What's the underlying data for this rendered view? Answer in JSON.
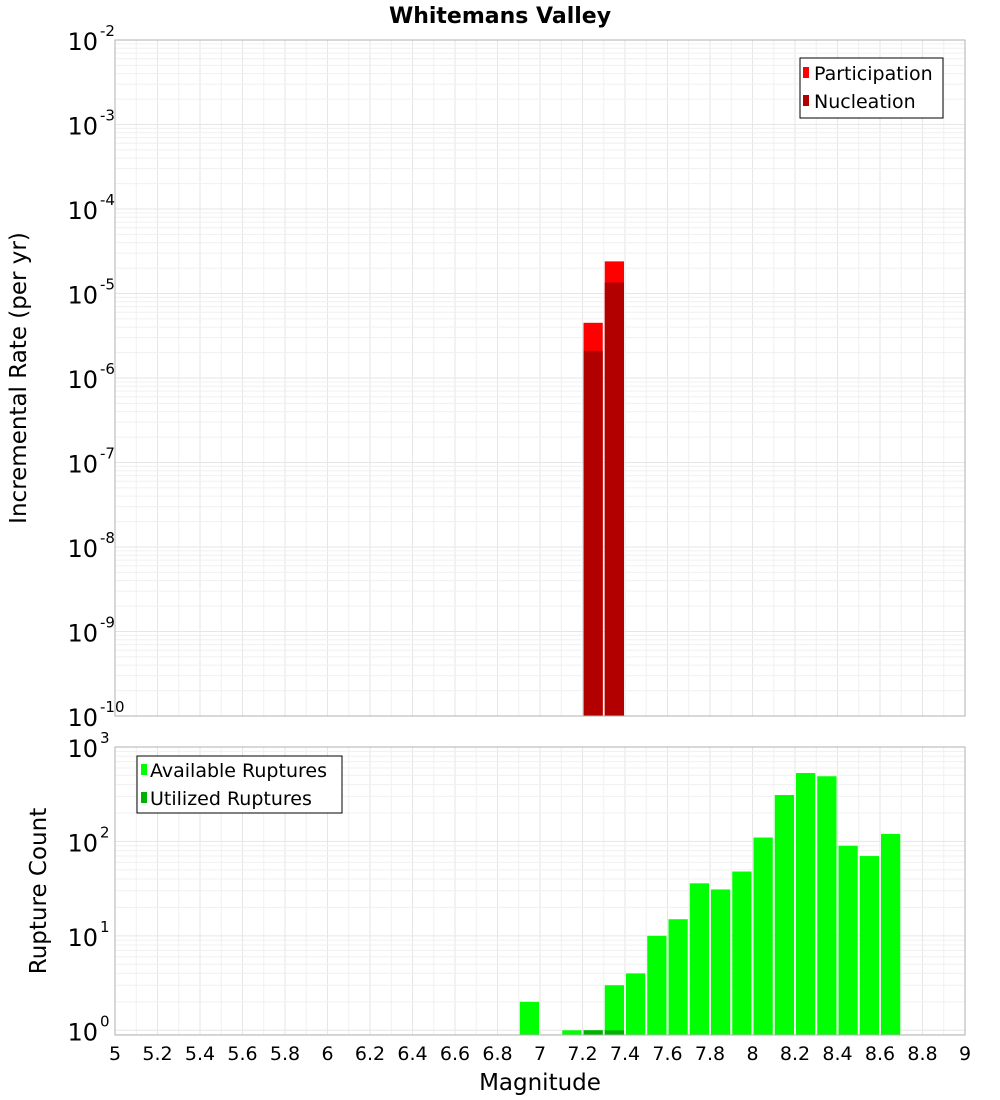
{
  "chart_data": [
    {
      "id": "rate",
      "type": "bar",
      "title": "Whitemans Valley",
      "xlabel": "",
      "ylabel": "Incremental Rate (per yr)",
      "xlim": [
        5,
        9
      ],
      "ylim_log10": [
        -10,
        -2
      ],
      "yscale": "log",
      "bin_width": 0.1,
      "legend_position": "top-right",
      "series": [
        {
          "name": "Participation",
          "color": "#ff0000",
          "x": [
            7.25,
            7.35
          ],
          "values": [
            4.5e-06,
            2.4e-05
          ]
        },
        {
          "name": "Nucleation",
          "color": "#b20000",
          "x": [
            7.25,
            7.35
          ],
          "values": [
            2.1e-06,
            1.35e-05
          ]
        }
      ],
      "y_ticks": [
        {
          "base": "10",
          "exp": "-2"
        },
        {
          "base": "10",
          "exp": "-3"
        },
        {
          "base": "10",
          "exp": "-4"
        },
        {
          "base": "10",
          "exp": "-5"
        },
        {
          "base": "10",
          "exp": "-6"
        },
        {
          "base": "10",
          "exp": "-7"
        },
        {
          "base": "10",
          "exp": "-8"
        },
        {
          "base": "10",
          "exp": "-9"
        },
        {
          "base": "10",
          "exp": "-10"
        }
      ]
    },
    {
      "id": "count",
      "type": "bar",
      "title": "",
      "xlabel": "Magnitude",
      "ylabel": "Rupture Count",
      "xlim": [
        5,
        9
      ],
      "ylim_log10": [
        -0.05,
        3
      ],
      "yscale": "log",
      "bin_width": 0.1,
      "legend_position": "top-left",
      "series": [
        {
          "name": "Available Ruptures",
          "color": "#00ff00",
          "x": [
            6.95,
            7.15,
            7.25,
            7.35,
            7.45,
            7.55,
            7.65,
            7.75,
            7.85,
            7.95,
            8.05,
            8.15,
            8.25,
            8.35,
            8.45,
            8.55,
            8.65
          ],
          "values": [
            2,
            1,
            1,
            3,
            4,
            10,
            15,
            36,
            31,
            48,
            110,
            310,
            530,
            490,
            90,
            70,
            120
          ]
        },
        {
          "name": "Utilized Ruptures",
          "color": "#00b200",
          "x": [
            7.25,
            7.35
          ],
          "values": [
            1,
            1
          ]
        }
      ],
      "y_ticks": [
        {
          "base": "10",
          "exp": "3"
        },
        {
          "base": "10",
          "exp": "2"
        },
        {
          "base": "10",
          "exp": "1"
        },
        {
          "base": "10",
          "exp": "0"
        }
      ],
      "x_ticks": [
        "5",
        "5.2",
        "5.4",
        "5.6",
        "5.8",
        "6",
        "6.2",
        "6.4",
        "6.6",
        "6.8",
        "7",
        "7.2",
        "7.4",
        "7.6",
        "7.8",
        "8",
        "8.2",
        "8.4",
        "8.6",
        "8.8",
        "9"
      ]
    }
  ]
}
